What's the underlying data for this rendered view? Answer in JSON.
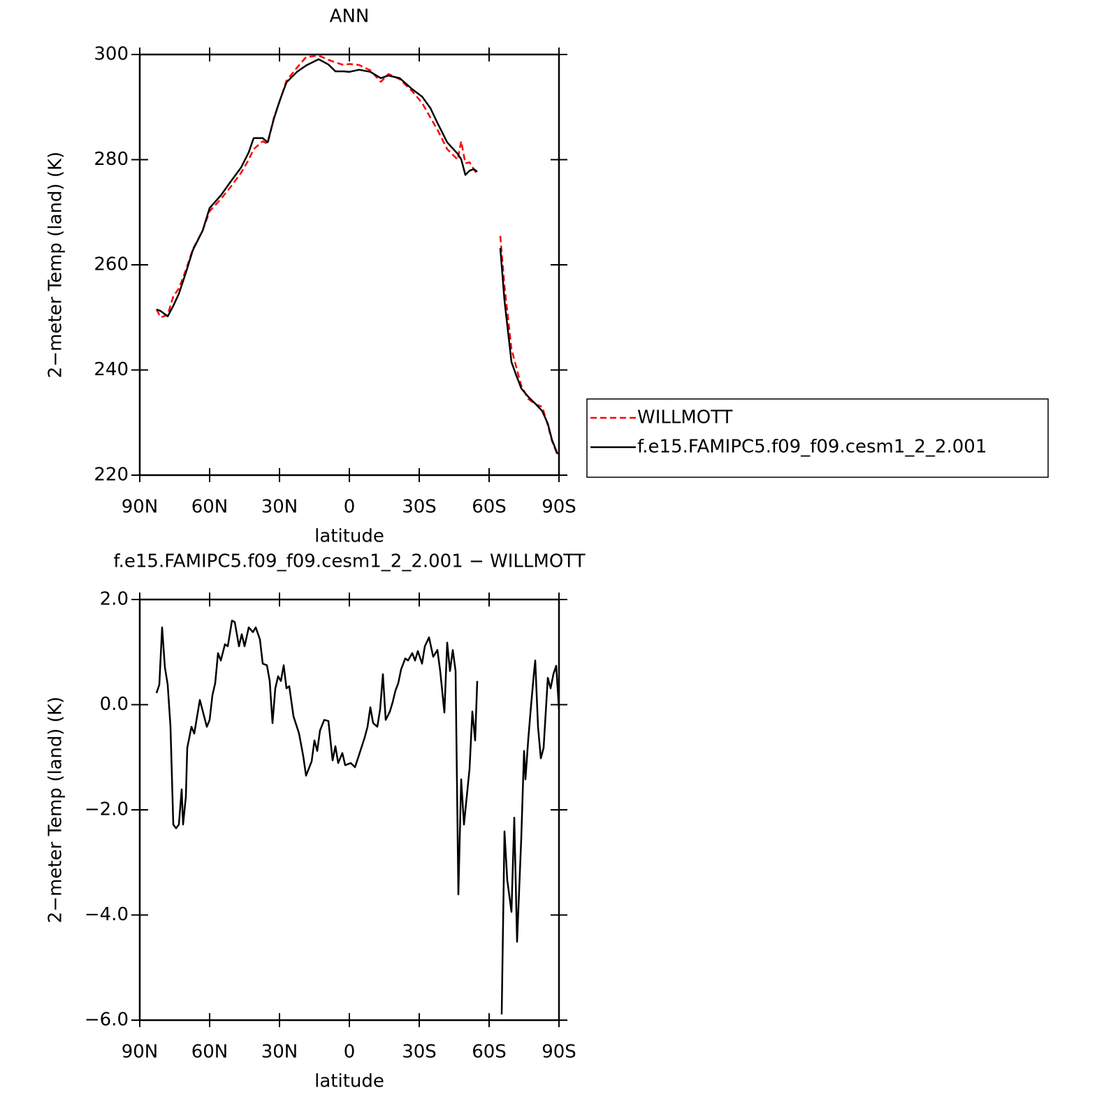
{
  "chart_data": [
    {
      "type": "line",
      "title": "ANN",
      "xlabel": "latitude",
      "ylabel": "2−meter Temp (land) (K)",
      "x": [
        82.8,
        81,
        78,
        75.6,
        73.2,
        70.2,
        67.2,
        63,
        60,
        55.2,
        51,
        46.5,
        43.2,
        41.1,
        37.2,
        35.1,
        32.4,
        30,
        27,
        22.5,
        18.6,
        13.2,
        9,
        6,
        2.4,
        0,
        -4.2,
        -9,
        -13.5,
        -16.8,
        -21.6,
        -27,
        -31.2,
        -34.8,
        -37.8,
        -42,
        -46.5,
        -48,
        -49.8,
        -51.6,
        -53.4,
        -54.9,
        -60,
        -64.8,
        -66.6,
        -69.6,
        -71.4,
        -73.8,
        -76.8,
        -79.8,
        -82.8,
        -85.2,
        -87,
        -89.4
      ],
      "series": [
        {
          "name": "WILLMOTT",
          "color": "#ff0000",
          "style": "dashed",
          "values": [
            251.5,
            250.0,
            250.5,
            254.0,
            255.5,
            259.0,
            263.0,
            266.5,
            270.2,
            272.5,
            274.8,
            277.5,
            280.0,
            282.0,
            283.5,
            283.0,
            288.0,
            291.0,
            295.0,
            297.5,
            299.5,
            299.8,
            299.0,
            298.5,
            298.0,
            298.2,
            298.0,
            297.0,
            294.8,
            296.3,
            295.3,
            293.0,
            290.8,
            288.0,
            285.7,
            282.0,
            280.0,
            283.5,
            279.3,
            279.5,
            278.2,
            277.2,
            null,
            265.5,
            256.0,
            244.0,
            241.0,
            237.0,
            234.5,
            233.5,
            233.0,
            229.5,
            226.5,
            223.8
          ]
        },
        {
          "name": "f.e15.FAMIPC5.f09_f09.cesm1_2_2.001",
          "color": "#000000",
          "style": "solid",
          "values": [
            251.5,
            251.2,
            250.2,
            252.2,
            254.5,
            258.5,
            262.8,
            266.5,
            270.8,
            273.2,
            275.8,
            278.5,
            281.4,
            284.1,
            284.1,
            283.3,
            287.8,
            291.1,
            294.7,
            296.7,
            297.9,
            299.1,
            298.1,
            296.8,
            296.8,
            296.7,
            297.1,
            296.7,
            295.5,
            296.0,
            295.5,
            293.4,
            292.0,
            289.8,
            287.0,
            283.3,
            281.1,
            280.1,
            277.1,
            277.9,
            278.2,
            277.7,
            null,
            263.2,
            253.2,
            241.5,
            239.3,
            236.5,
            234.9,
            233.6,
            232.2,
            229.8,
            226.7,
            224.0
          ]
        }
      ],
      "xlim": [
        90,
        -90
      ],
      "xticks": [
        {
          "value": 90,
          "label": "90N"
        },
        {
          "value": 60,
          "label": "60N"
        },
        {
          "value": 30,
          "label": "30N"
        },
        0,
        {
          "value": -30,
          "label": "30S"
        },
        {
          "value": -60,
          "label": "60S"
        },
        {
          "value": -90,
          "label": "90S"
        }
      ],
      "ylim": [
        220,
        300
      ],
      "yticks": [
        220,
        240,
        260,
        280,
        300
      ],
      "legend": "right"
    },
    {
      "type": "line",
      "title": "f.e15.FAMIPC5.f09_f09.cesm1_2_2.001 − WILLMOTT",
      "xlabel": "latitude",
      "ylabel": "2−meter Temp (land) (K)",
      "x": [
        82.8,
        81.6,
        80.4,
        79.2,
        78,
        76.8,
        75.6,
        74.4,
        73.2,
        72,
        71.4,
        70.2,
        69.6,
        67.8,
        66.6,
        64.2,
        61.2,
        60,
        58.8,
        57.6,
        56.4,
        55.2,
        53.4,
        52.2,
        50.4,
        49.2,
        47.4,
        46.2,
        45,
        43.2,
        41.4,
        40.2,
        38.4,
        37.2,
        35.4,
        34.2,
        33,
        31.8,
        30.6,
        29.4,
        28.2,
        27,
        25.8,
        24,
        21.6,
        19.8,
        18.6,
        16.2,
        15,
        13.8,
        12.6,
        10.8,
        9,
        7.2,
        6,
        4.8,
        3,
        1.8,
        -0.6,
        -2.4,
        -4.2,
        -6.6,
        -7.8,
        -9,
        -10.2,
        -12,
        -13.2,
        -14.4,
        -15.6,
        -17.4,
        -18.6,
        -19.8,
        -21,
        -22.2,
        -24,
        -25.2,
        -27,
        -28.2,
        -29.4,
        -31.2,
        -32.4,
        -34.2,
        -36,
        -37.8,
        -39,
        -40.8,
        -42,
        -43.2,
        -44.4,
        -45.6,
        -46.8,
        -48,
        -49.2,
        -50.4,
        -51.6,
        -52.8,
        -54,
        -54.9,
        -60,
        -65.4,
        -66.6,
        -67.8,
        -69.6,
        -70.8,
        -72,
        -73.8,
        -75,
        -75.6,
        -76.8,
        -78,
        -79.2,
        -79.8,
        -81,
        -82.2,
        -83.4,
        -85.2,
        -86.4,
        -87.6,
        -88.8,
        -90
      ],
      "values": [
        0.22,
        0.38,
        1.47,
        0.71,
        0.38,
        -0.42,
        -2.28,
        -2.35,
        -2.28,
        -1.61,
        -2.28,
        -1.75,
        -0.82,
        -0.42,
        -0.55,
        0.09,
        -0.42,
        -0.29,
        0.18,
        0.41,
        0.98,
        0.84,
        1.15,
        1.11,
        1.6,
        1.57,
        1.11,
        1.34,
        1.11,
        1.47,
        1.38,
        1.47,
        1.24,
        0.78,
        0.75,
        0.45,
        -0.35,
        0.31,
        0.54,
        0.45,
        0.75,
        0.31,
        0.35,
        -0.22,
        -0.55,
        -0.98,
        -1.35,
        -1.08,
        -0.68,
        -0.88,
        -0.49,
        -0.29,
        -0.31,
        -1.06,
        -0.79,
        -1.11,
        -0.92,
        -1.15,
        -1.11,
        -1.19,
        -0.95,
        -0.62,
        -0.42,
        -0.05,
        -0.35,
        -0.42,
        -0.09,
        0.58,
        -0.29,
        -0.13,
        0.05,
        0.27,
        0.41,
        0.67,
        0.88,
        0.84,
        0.98,
        0.84,
        1.02,
        0.78,
        1.11,
        1.28,
        0.91,
        1.04,
        0.64,
        -0.15,
        1.18,
        0.64,
        1.04,
        0.64,
        -3.61,
        -1.42,
        -2.28,
        -1.75,
        -1.22,
        -0.13,
        -0.68,
        0.45,
        null,
        -5.89,
        -2.41,
        -3.34,
        -3.94,
        -2.15,
        -4.51,
        -2.54,
        -0.88,
        -1.42,
        -0.66,
        -0.02,
        0.58,
        0.84,
        -0.42,
        -1.02,
        -0.82,
        0.51,
        0.31,
        0.58,
        0.74,
        -0.09
      ],
      "color": "#000000",
      "xlim": [
        90,
        -90
      ],
      "xticks": [
        {
          "value": 90,
          "label": "90N"
        },
        {
          "value": 60,
          "label": "60N"
        },
        {
          "value": 30,
          "label": "30N"
        },
        0,
        {
          "value": -30,
          "label": "30S"
        },
        {
          "value": -60,
          "label": "60S"
        },
        {
          "value": -90,
          "label": "90S"
        }
      ],
      "ylim": [
        -6,
        2
      ],
      "yticks": [
        {
          "value": -6,
          "label": "−6.0"
        },
        {
          "value": -4,
          "label": "−4.0"
        },
        {
          "value": -2,
          "label": "−2.0"
        },
        {
          "value": 0,
          "label": "0.0"
        },
        {
          "value": 2,
          "label": "2.0"
        }
      ]
    }
  ]
}
